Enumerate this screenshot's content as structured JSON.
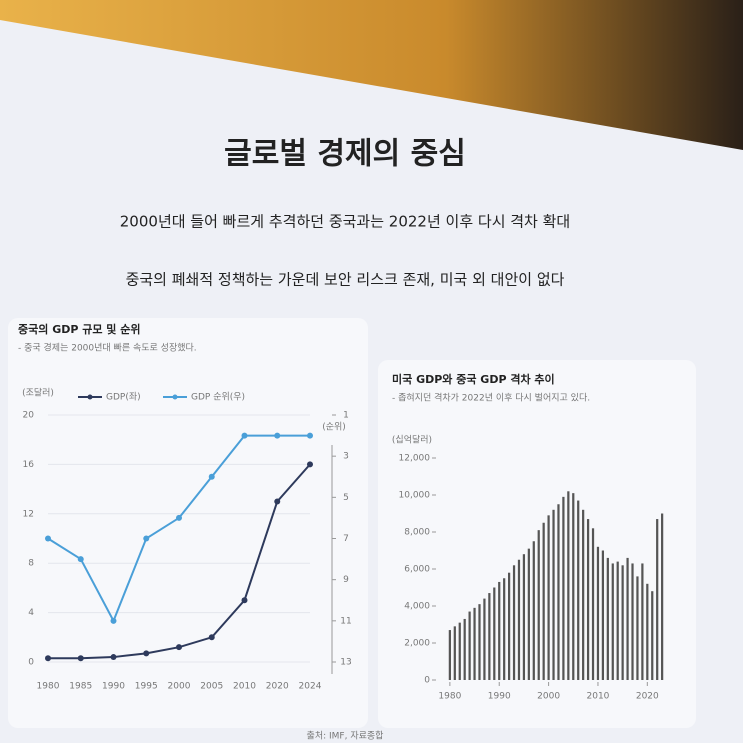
{
  "slide": {
    "title": "글로벌 경제의 중심",
    "lines": [
      "2000년대 들어 빠르게 추격하던 중국과는 2022년 이후 다시 격차 확대",
      "중국의 폐쇄적 정책하는 가운데 보안 리스크 존재, 미국 외 대안이 없다"
    ],
    "source": "출처: IMF, 자료종합"
  },
  "chart_data": [
    {
      "type": "line",
      "title": "중국의 GDP 규모 및 순위",
      "subtitle": "- 중국 경제는 2000년대 빠른 속도로 성장했다.",
      "y_label": "(조달러)",
      "y2_label": "(순위)",
      "categories": [
        "1980",
        "1985",
        "1990",
        "1995",
        "2000",
        "2005",
        "2010",
        "2020",
        "2024"
      ],
      "series": [
        {
          "name": "GDP(좌)",
          "color": "#2e3a5c",
          "values": [
            0.3,
            0.3,
            0.4,
            0.7,
            1.2,
            2.0,
            5.0,
            13.0,
            16.0
          ]
        },
        {
          "name": "GDP 순위(우)",
          "color": "#4a9fd8",
          "values": [
            7,
            8,
            11,
            7,
            6,
            4,
            2,
            2,
            2
          ],
          "axis": "y2"
        }
      ],
      "ylim": [
        0,
        20
      ],
      "yticks": [
        0,
        4,
        8,
        12,
        16,
        20
      ],
      "y2lim": [
        13,
        1
      ],
      "y2ticks": [
        1,
        3,
        5,
        7,
        9,
        11,
        13
      ]
    },
    {
      "type": "bar",
      "title": "미국 GDP와 중국 GDP 격차 추이",
      "subtitle": "- 좁혀지던 격차가 2022년 이후 다시 벌어지고 있다.",
      "y_label": "(십억달러)",
      "color": "#555555",
      "x": [
        1980,
        1981,
        1982,
        1983,
        1984,
        1985,
        1986,
        1987,
        1988,
        1989,
        1990,
        1991,
        1992,
        1993,
        1994,
        1995,
        1996,
        1997,
        1998,
        1999,
        2000,
        2001,
        2002,
        2003,
        2004,
        2005,
        2006,
        2007,
        2008,
        2009,
        2010,
        2011,
        2012,
        2013,
        2014,
        2015,
        2016,
        2017,
        2018,
        2019,
        2020,
        2021,
        2022,
        2023
      ],
      "values": [
        2700,
        2900,
        3100,
        3300,
        3700,
        3900,
        4100,
        4400,
        4700,
        5000,
        5300,
        5500,
        5800,
        6200,
        6500,
        6800,
        7100,
        7500,
        8100,
        8500,
        8900,
        9200,
        9500,
        9900,
        10200,
        10100,
        9700,
        9200,
        8700,
        8200,
        7200,
        7000,
        6600,
        6300,
        6400,
        6200,
        6600,
        6300,
        5600,
        6300,
        5200,
        4800,
        8700,
        9000
      ],
      "xlim": [
        1978,
        2025
      ],
      "xticks": [
        1980,
        1990,
        2000,
        2010,
        2020
      ],
      "ylim": [
        0,
        12000
      ],
      "yticks": [
        0,
        {
          "value": 2000,
          "label": "2,000"
        },
        {
          "value": 4000,
          "label": "4,000"
        },
        {
          "value": 6000,
          "label": "6,000"
        },
        {
          "value": 8000,
          "label": "8,000"
        },
        {
          "value": 10000,
          "label": "10,000"
        },
        {
          "value": 12000,
          "label": "12,000"
        }
      ]
    }
  ]
}
